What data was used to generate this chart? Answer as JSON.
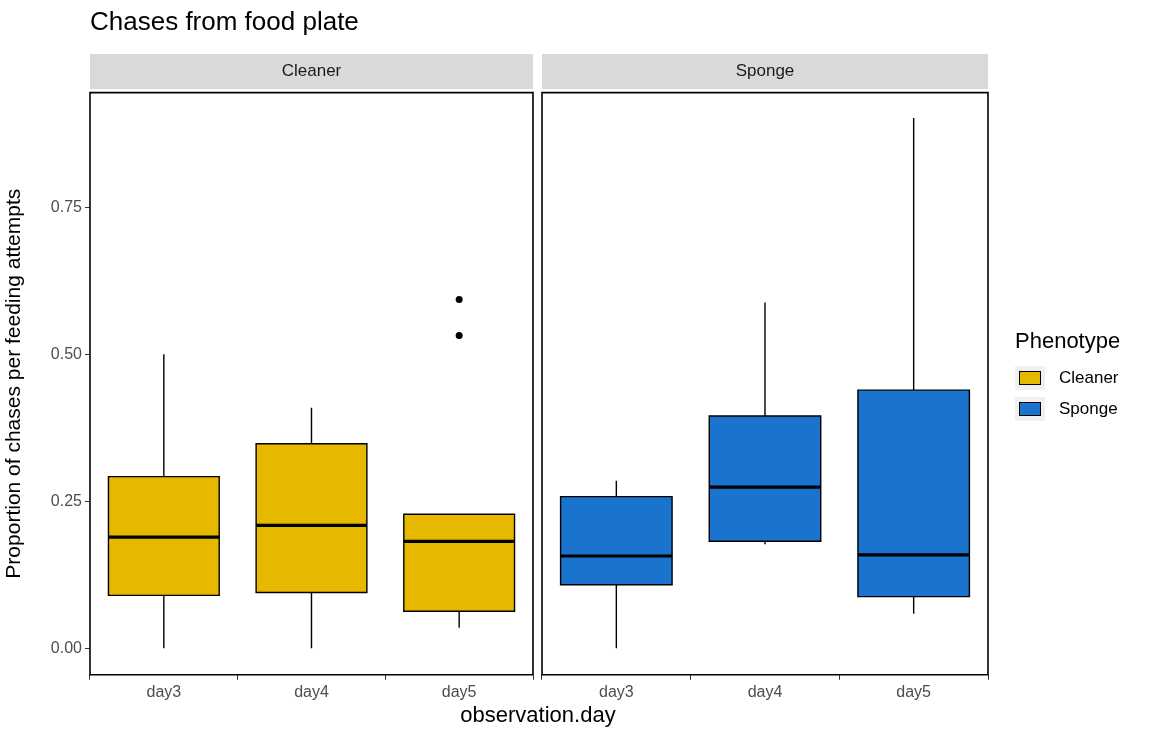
{
  "chart_data": [
    {
      "type": "box",
      "title": "Chases from food plate",
      "subtitle": "Cleaner",
      "xlabel": "observation.day",
      "ylabel": "Proportion of chases per feeding attempts",
      "categories": [
        "day3",
        "day4",
        "day5"
      ],
      "ylim": [
        -0.045,
        0.945
      ],
      "yticks": [
        {
          "value": 0,
          "label": "0.00"
        },
        {
          "value": 0.25,
          "label": "0.25"
        },
        {
          "value": 0.5,
          "label": "0.50"
        },
        {
          "value": 0.75,
          "label": "0.75"
        }
      ],
      "grid": false,
      "legend": "right",
      "series": [
        {
          "name": "Cleaner",
          "color": "#e6b800",
          "boxes": [
            {
              "low": 0.0,
              "q1": 0.09,
              "median": 0.189,
              "q3": 0.292,
              "high": 0.5
            },
            {
              "low": 0.0,
              "q1": 0.095,
              "median": 0.209,
              "q3": 0.348,
              "high": 0.409
            },
            {
              "low": 0.035,
              "q1": 0.063,
              "median": 0.182,
              "q3": 0.228,
              "high": 0.228,
              "outliers": [
                0.593,
                0.532
              ]
            }
          ]
        }
      ]
    },
    {
      "type": "box",
      "subtitle": "Sponge",
      "categories": [
        "day3",
        "day4",
        "day5"
      ],
      "ylim": [
        -0.045,
        0.945
      ],
      "tick_labels": "x",
      "grid": false,
      "legend": "right",
      "legend_title": "Phenotype",
      "series": [
        {
          "name": "Sponge",
          "color": "#1a73cc",
          "boxes": [
            {
              "low": 0.0,
              "q1": 0.108,
              "median": 0.157,
              "q3": 0.258,
              "high": 0.285
            },
            {
              "low": 0.177,
              "q1": 0.182,
              "median": 0.274,
              "q3": 0.395,
              "high": 0.588
            },
            {
              "low": 0.059,
              "q1": 0.088,
              "median": 0.159,
              "q3": 0.439,
              "high": 0.902
            }
          ]
        }
      ]
    }
  ]
}
